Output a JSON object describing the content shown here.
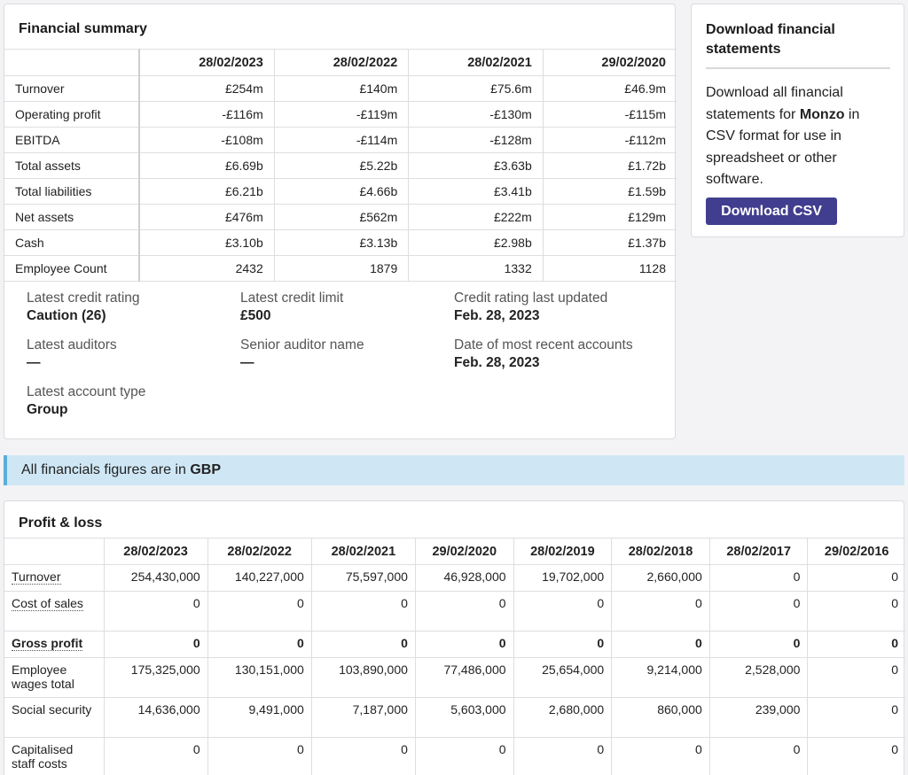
{
  "summary": {
    "title": "Financial summary",
    "columns": [
      "28/02/2023",
      "28/02/2022",
      "28/02/2021",
      "29/02/2020"
    ],
    "rows": [
      {
        "label": "Turnover",
        "values": [
          "£254m",
          "£140m",
          "£75.6m",
          "£46.9m"
        ]
      },
      {
        "label": "Operating profit",
        "values": [
          "-£116m",
          "-£119m",
          "-£130m",
          "-£115m"
        ]
      },
      {
        "label": "EBITDA",
        "values": [
          "-£108m",
          "-£114m",
          "-£128m",
          "-£112m"
        ]
      },
      {
        "label": "Total assets",
        "values": [
          "£6.69b",
          "£5.22b",
          "£3.63b",
          "£1.72b"
        ]
      },
      {
        "label": "Total liabilities",
        "values": [
          "£6.21b",
          "£4.66b",
          "£3.41b",
          "£1.59b"
        ]
      },
      {
        "label": "Net assets",
        "values": [
          "£476m",
          "£562m",
          "£222m",
          "£129m"
        ]
      },
      {
        "label": "Cash",
        "values": [
          "£3.10b",
          "£3.13b",
          "£2.98b",
          "£1.37b"
        ]
      },
      {
        "label": "Employee Count",
        "values": [
          "2432",
          "1879",
          "1332",
          "1128"
        ]
      }
    ],
    "details": [
      {
        "label": "Latest credit rating",
        "value": "Caution (26)"
      },
      {
        "label": "Latest credit limit",
        "value": "£500"
      },
      {
        "label": "Credit rating last updated",
        "value": "Feb. 28, 2023"
      },
      {
        "label": "Latest auditors",
        "value": "—"
      },
      {
        "label": "Senior auditor name",
        "value": "—"
      },
      {
        "label": "Date of most recent accounts",
        "value": "Feb. 28, 2023"
      },
      {
        "label": "Latest account type",
        "value": "Group"
      }
    ]
  },
  "download": {
    "title": "Download financial statements",
    "desc_before": "Download all financial statements for ",
    "company": "Monzo",
    "desc_after": " in CSV format for use in spreadsheet or other software.",
    "button_label": "Download CSV",
    "button_color": "#413e8f"
  },
  "banner": {
    "text_before": "All financials figures are in ",
    "currency": "GBP",
    "accent_color": "#5aaedb",
    "background_color": "#cfe7f5"
  },
  "profit_loss": {
    "title": "Profit & loss",
    "columns": [
      "28/02/2023",
      "28/02/2022",
      "28/02/2021",
      "29/02/2020",
      "28/02/2019",
      "28/02/2018",
      "28/02/2017",
      "29/02/2016"
    ],
    "rows": [
      {
        "label": "Turnover",
        "underline": true,
        "bold": false,
        "values": [
          "254,430,000",
          "140,227,000",
          "75,597,000",
          "46,928,000",
          "19,702,000",
          "2,660,000",
          "0",
          "0"
        ]
      },
      {
        "label": "Cost of sales",
        "underline": true,
        "bold": false,
        "values": [
          "0",
          "0",
          "0",
          "0",
          "0",
          "0",
          "0",
          "0"
        ]
      },
      {
        "label": "Gross profit",
        "underline": true,
        "bold": true,
        "values": [
          "0",
          "0",
          "0",
          "0",
          "0",
          "0",
          "0",
          "0"
        ]
      },
      {
        "label": "Employee wages total",
        "underline": false,
        "bold": false,
        "values": [
          "175,325,000",
          "130,151,000",
          "103,890,000",
          "77,486,000",
          "25,654,000",
          "9,214,000",
          "2,528,000",
          "0"
        ]
      },
      {
        "label": "Social security",
        "underline": false,
        "bold": false,
        "values": [
          "14,636,000",
          "9,491,000",
          "7,187,000",
          "5,603,000",
          "2,680,000",
          "860,000",
          "239,000",
          "0"
        ]
      },
      {
        "label": "Capitalised staff costs",
        "underline": false,
        "bold": false,
        "values": [
          "0",
          "0",
          "0",
          "0",
          "0",
          "0",
          "0",
          "0"
        ]
      }
    ]
  }
}
